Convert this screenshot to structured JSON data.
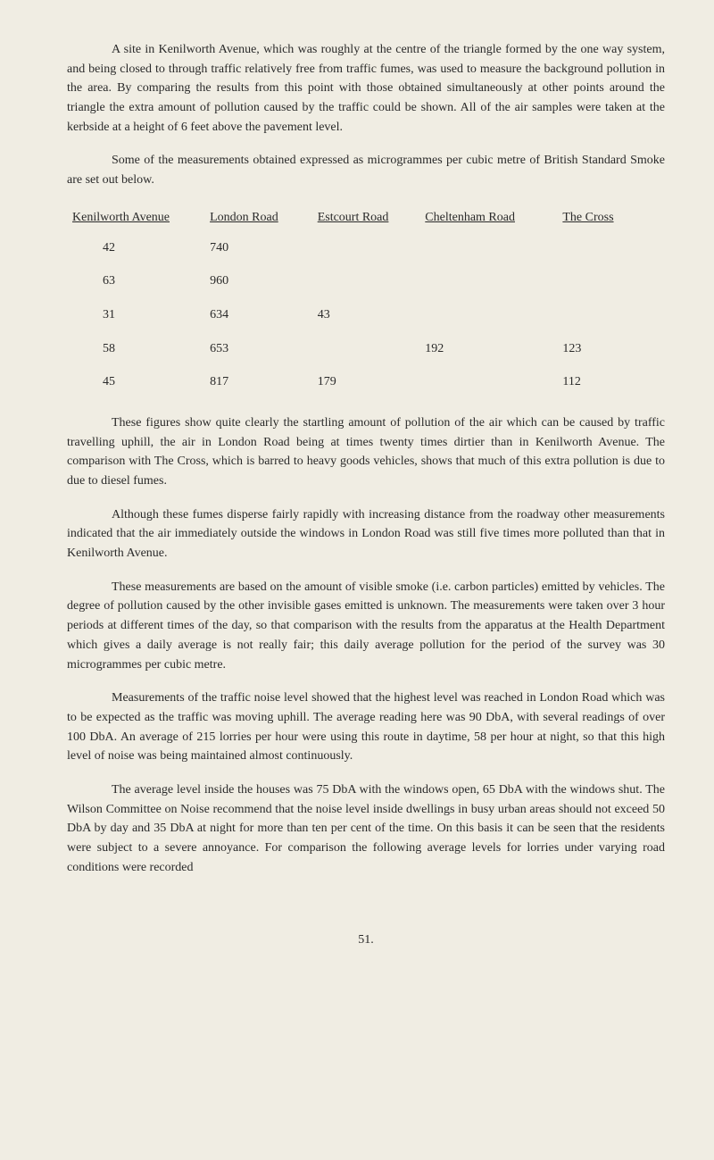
{
  "paragraphs": {
    "p1": "A site in Kenilworth Avenue, which was roughly at the centre of the triangle formed by the one way system, and being closed to through traffic relatively free from traffic fumes, was used to measure the background pollution in the area. By comparing the results from this point with those obtained simultaneously at other points around the triangle the extra amount of pollution caused by the traffic could be shown. All of the air samples were taken at the kerbside at a height of 6 feet above the pavement level.",
    "p2": "Some of the measurements obtained expressed as microgrammes per cubic metre of British Standard Smoke are set out below.",
    "p3": "These figures show quite clearly the startling amount of pollution of the air which can be caused by traffic travelling uphill, the air in London Road being at times twenty times dirtier than in Kenilworth Avenue. The comparison with The Cross, which is barred to heavy goods vehicles, shows that much of this extra pollution is due to due to diesel fumes.",
    "p4": "Although these fumes disperse fairly rapidly with increasing distance from the roadway other measurements indicated that the air immediately outside the windows in London Road was still five times more polluted than that in Kenilworth Avenue.",
    "p5": "These measurements are based on the amount of visible smoke (i.e. carbon particles) emitted by vehicles. The degree of pollution caused by the other invisible gases emitted is unknown. The measurements were taken over 3 hour periods at different times of the day, so that comparison with the results from the apparatus at the Health Department which gives a daily average is not really fair; this daily average pollution for the period of the survey was 30 microgrammes per cubic metre.",
    "p6": "Measurements of the traffic noise level showed that the highest level was reached in London Road which was to be expected as the traffic was moving uphill. The average reading here was 90 DbA, with several readings of over 100 DbA. An average of 215 lorries per hour were using this route in daytime, 58 per hour at night, so that this high level of noise was being maintained almost continuously.",
    "p7": "The average level inside the houses was 75 DbA with the windows open, 65 DbA with the windows shut. The Wilson Committee on Noise recommend that the noise level inside dwellings in busy urban areas should not exceed 50 DbA by day and 35 DbA at night for more than ten per cent of the time. On this basis it can be seen that the residents were subject to a severe annoyance. For comparison the following average levels for lorries under varying road conditions were recorded"
  },
  "table": {
    "headers": {
      "h1": "Kenilworth Avenue",
      "h2": "London Road",
      "h3": "Estcourt Road",
      "h4": "Cheltenham Road",
      "h5": "The Cross"
    },
    "rows": [
      {
        "c1": "42",
        "c2": "740",
        "c3": "",
        "c4": "",
        "c5": ""
      },
      {
        "c1": "63",
        "c2": "960",
        "c3": "",
        "c4": "",
        "c5": ""
      },
      {
        "c1": "31",
        "c2": "634",
        "c3": "43",
        "c4": "",
        "c5": ""
      },
      {
        "c1": "58",
        "c2": "653",
        "c3": "",
        "c4": "192",
        "c5": "123"
      },
      {
        "c1": "45",
        "c2": "817",
        "c3": "179",
        "c4": "",
        "c5": "112"
      }
    ]
  },
  "page_number": "51."
}
